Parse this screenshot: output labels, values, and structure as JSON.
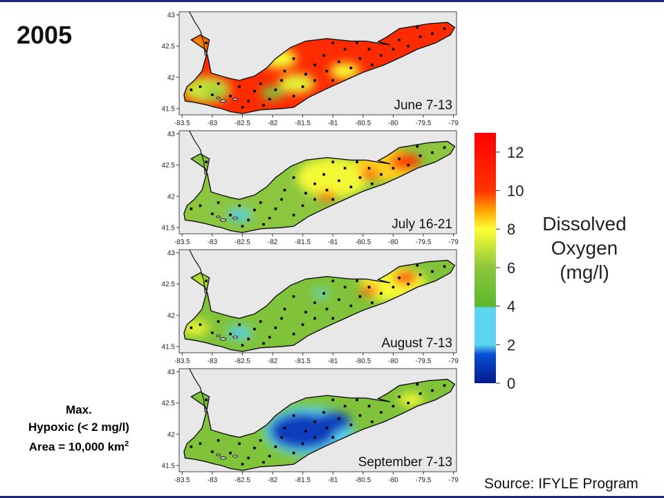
{
  "year": "2005",
  "note": {
    "line1": "Max.",
    "line2": "Hypoxic (< 2 mg/l)",
    "line3_prefix": "Area = 10,000 km",
    "line3_sup": "2"
  },
  "source": "Source: IFYLE Program",
  "legend": {
    "title_lines": [
      "Dissolved",
      "Oxygen",
      "(mg/l)"
    ],
    "ticks": [
      0,
      2,
      4,
      6,
      8,
      10,
      12
    ],
    "range": [
      0,
      13
    ],
    "stops": [
      {
        "value": 0,
        "color": "#001a8c"
      },
      {
        "value": 1.5,
        "color": "#0a4fd6"
      },
      {
        "value": 2,
        "color": "#5cd6f0"
      },
      {
        "value": 3.9,
        "color": "#5cd6f0"
      },
      {
        "value": 4,
        "color": "#5cb82e"
      },
      {
        "value": 6,
        "color": "#8cc63e"
      },
      {
        "value": 8,
        "color": "#ffff33"
      },
      {
        "value": 9,
        "color": "#ffa000"
      },
      {
        "value": 10,
        "color": "#ff3300"
      },
      {
        "value": 13,
        "color": "#ff0000"
      }
    ]
  },
  "chart_data": [
    {
      "type": "heatmap",
      "title": "June 7-13",
      "x_ticks": [
        -83.5,
        -83,
        -82.5,
        -82,
        -81.5,
        -81,
        -80.5,
        -80,
        -79.5,
        -79
      ],
      "y_ticks": [
        41.5,
        42,
        42.5,
        43
      ],
      "xlim": [
        -83.55,
        -78.95
      ],
      "ylim": [
        41.4,
        43.05
      ],
      "base_do": 10.5,
      "patches": [
        {
          "lon": -83.1,
          "lat": 41.8,
          "do": 7,
          "r": 0.4
        },
        {
          "lon": -82.95,
          "lat": 41.75,
          "do": 5.5,
          "r": 0.15
        },
        {
          "lon": -82.0,
          "lat": 41.75,
          "do": 5.5,
          "r": 0.2
        },
        {
          "lon": -81.6,
          "lat": 41.9,
          "do": 7.5,
          "r": 0.3
        },
        {
          "lon": -81.9,
          "lat": 42.3,
          "do": 7.8,
          "r": 0.3
        },
        {
          "lon": -83.2,
          "lat": 42.55,
          "do": 9,
          "r": 0.2
        },
        {
          "lon": -80.8,
          "lat": 42.1,
          "do": 7.8,
          "r": 0.25
        }
      ]
    },
    {
      "type": "heatmap",
      "title": "July 16-21",
      "x_ticks": [
        -83.5,
        -83,
        -82.5,
        -82,
        -81.5,
        -81,
        -80.5,
        -80,
        -79.5,
        -79
      ],
      "y_ticks": [
        41.5,
        42,
        42.5,
        43
      ],
      "xlim": [
        -83.55,
        -78.95
      ],
      "ylim": [
        41.4,
        43.05
      ],
      "base_do": 6,
      "patches": [
        {
          "lon": -81.0,
          "lat": 42.3,
          "do": 7.8,
          "r": 0.6
        },
        {
          "lon": -80.1,
          "lat": 42.5,
          "do": 8.5,
          "r": 0.5
        },
        {
          "lon": -79.8,
          "lat": 42.55,
          "do": 10.5,
          "r": 0.25
        },
        {
          "lon": -80.4,
          "lat": 42.35,
          "do": 10,
          "r": 0.15
        },
        {
          "lon": -81.1,
          "lat": 42.0,
          "do": 9.5,
          "r": 0.15
        },
        {
          "lon": -82.55,
          "lat": 41.7,
          "do": 3,
          "r": 0.2
        },
        {
          "lon": -82.6,
          "lat": 41.65,
          "do": 1,
          "r": 0.06
        },
        {
          "lon": -83.0,
          "lat": 41.85,
          "do": 3,
          "r": 0.05
        }
      ]
    },
    {
      "type": "heatmap",
      "title": "August 7-13",
      "x_ticks": [
        -83.5,
        -83,
        -82.5,
        -82,
        -81.5,
        -81,
        -80.5,
        -80,
        -79.5,
        -79
      ],
      "y_ticks": [
        41.5,
        42,
        42.5,
        43
      ],
      "xlim": [
        -83.55,
        -78.95
      ],
      "ylim": [
        41.4,
        43.05
      ],
      "base_do": 5.5,
      "patches": [
        {
          "lon": -80.0,
          "lat": 42.5,
          "do": 7.8,
          "r": 0.55
        },
        {
          "lon": -79.8,
          "lat": 42.6,
          "do": 10.5,
          "r": 0.2
        },
        {
          "lon": -80.4,
          "lat": 42.4,
          "do": 10,
          "r": 0.15
        },
        {
          "lon": -82.55,
          "lat": 41.72,
          "do": 3,
          "r": 0.2
        },
        {
          "lon": -82.6,
          "lat": 41.7,
          "do": 1.5,
          "r": 0.05
        },
        {
          "lon": -81.2,
          "lat": 42.35,
          "do": 3,
          "r": 0.12
        },
        {
          "lon": -83.3,
          "lat": 41.8,
          "do": 7.5,
          "r": 0.25
        },
        {
          "lon": -83.2,
          "lat": 42.55,
          "do": 7.5,
          "r": 0.15
        }
      ]
    },
    {
      "type": "heatmap",
      "title": "September 7-13",
      "x_ticks": [
        -83.5,
        -83,
        -82.5,
        -82,
        -81.5,
        -81,
        -80.5,
        -80,
        -79.5,
        -79
      ],
      "y_ticks": [
        41.5,
        42,
        42.5,
        43
      ],
      "xlim": [
        -83.55,
        -78.95
      ],
      "ylim": [
        41.4,
        43.05
      ],
      "base_do": 5.5,
      "patches": [
        {
          "lon": -81.4,
          "lat": 42.05,
          "do": 3,
          "r": 0.75
        },
        {
          "lon": -81.5,
          "lat": 42.05,
          "do": 1,
          "r": 0.55
        },
        {
          "lon": -81.0,
          "lat": 42.2,
          "do": 1,
          "r": 0.3
        },
        {
          "lon": -79.7,
          "lat": 42.55,
          "do": 7.8,
          "r": 0.2
        }
      ]
    }
  ]
}
